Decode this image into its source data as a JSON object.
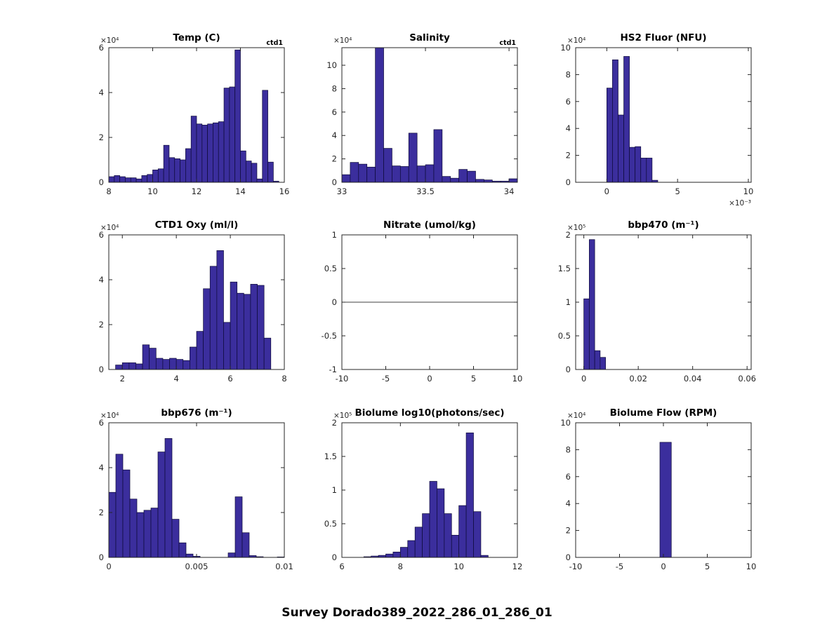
{
  "figure_title": "Survey Dorado389_2022_286_01_286_01",
  "style": {
    "bar_fill": "#3b2e9d",
    "bar_edge": "#0d0a38",
    "axis_color": "#262626"
  },
  "chart_data": [
    {
      "type": "bar",
      "title": "Temp (C)",
      "annotation": "ctd1",
      "y_exponent": "×10⁴",
      "xlim": [
        8,
        16
      ],
      "ylim": [
        0,
        6
      ],
      "xticks": [
        8,
        10,
        12,
        14,
        16
      ],
      "yticks": [
        0,
        2,
        4,
        6
      ],
      "bin_start": 8.0,
      "bin_width": 0.25,
      "values": [
        0.25,
        0.3,
        0.25,
        0.2,
        0.2,
        0.15,
        0.3,
        0.35,
        0.55,
        0.6,
        1.65,
        1.1,
        1.05,
        1.0,
        1.5,
        2.95,
        2.6,
        2.55,
        2.6,
        2.65,
        2.7,
        4.2,
        4.25,
        5.9,
        1.4,
        0.95,
        0.85,
        0.15,
        4.1,
        0.9,
        0.05
      ]
    },
    {
      "type": "bar",
      "title": "Salinity",
      "annotation": "ctd1",
      "y_exponent": "×10⁴",
      "xlim": [
        33,
        34.05
      ],
      "ylim": [
        0,
        11.5
      ],
      "xticks": [
        33,
        33.5,
        34
      ],
      "yticks": [
        0,
        2,
        4,
        6,
        8,
        10
      ],
      "bin_start": 33.0,
      "bin_width": 0.05,
      "values": [
        0.65,
        1.7,
        1.55,
        1.3,
        11.5,
        2.9,
        1.4,
        1.35,
        4.2,
        1.4,
        1.5,
        4.5,
        0.5,
        0.35,
        1.1,
        0.95,
        0.25,
        0.2,
        0.1,
        0.1,
        0.3
      ]
    },
    {
      "type": "bar",
      "title": "HS2 Fluor (NFU)",
      "y_exponent": "×10⁴",
      "x_exponent": "×10⁻³",
      "xlim": [
        -0.0022,
        0.0102
      ],
      "ylim": [
        0,
        10
      ],
      "xticks": [
        0,
        0.005,
        0.01
      ],
      "xtick_labels": [
        "0",
        "5",
        "10"
      ],
      "yticks": [
        0,
        2,
        4,
        6,
        8,
        10
      ],
      "bin_start": 0,
      "bin_width": 0.0004,
      "values": [
        7.0,
        9.1,
        5.0,
        9.35,
        2.6,
        2.65,
        1.8,
        1.8,
        0.15
      ]
    },
    {
      "type": "bar",
      "title": "CTD1 Oxy (ml/l)",
      "y_exponent": "×10⁴",
      "xlim": [
        1.5,
        8
      ],
      "ylim": [
        0,
        6
      ],
      "xticks": [
        2,
        4,
        6,
        8
      ],
      "yticks": [
        0,
        2,
        4,
        6
      ],
      "bin_start": 1.75,
      "bin_width": 0.25,
      "values": [
        0.2,
        0.3,
        0.3,
        0.25,
        1.1,
        0.95,
        0.5,
        0.45,
        0.5,
        0.45,
        0.4,
        1.0,
        1.7,
        3.6,
        4.6,
        5.3,
        2.1,
        3.9,
        3.4,
        3.35,
        3.8,
        3.75,
        1.4
      ]
    },
    {
      "type": "bar",
      "title": "Nitrate (umol/kg)",
      "xlim": [
        -10,
        10
      ],
      "ylim": [
        -1,
        1
      ],
      "xticks": [
        -10,
        -5,
        0,
        5,
        10
      ],
      "yticks": [
        -1,
        -0.5,
        0,
        0.5,
        1
      ],
      "bin_start": 0,
      "bin_width": 1,
      "values": [],
      "zero_line": true
    },
    {
      "type": "bar",
      "title": "bbp470 (m⁻¹)",
      "y_exponent": "×10⁵",
      "xlim": [
        -0.003,
        0.0615
      ],
      "ylim": [
        0,
        2
      ],
      "xticks": [
        0,
        0.02,
        0.04,
        0.06
      ],
      "yticks": [
        0,
        0.5,
        1,
        1.5,
        2
      ],
      "bin_start": 0,
      "bin_width": 0.002,
      "values": [
        1.05,
        1.93,
        0.28,
        0.18
      ]
    },
    {
      "type": "bar",
      "title": "bbp676 (m⁻¹)",
      "y_exponent": "×10⁴",
      "xlim": [
        0,
        0.01
      ],
      "ylim": [
        0,
        6
      ],
      "xticks": [
        0,
        0.005,
        0.01
      ],
      "yticks": [
        0,
        2,
        4,
        6
      ],
      "bin_start": 0,
      "bin_width": 0.0004,
      "values": [
        2.9,
        4.6,
        3.9,
        2.6,
        2.0,
        2.1,
        2.2,
        4.7,
        5.3,
        1.7,
        0.65,
        0.15,
        0.05,
        0,
        0,
        0,
        0,
        0.2,
        2.7,
        1.1,
        0.08,
        0.03,
        0,
        0,
        0.02
      ]
    },
    {
      "type": "bar",
      "title": "Biolume log10(photons/sec)",
      "y_exponent": "×10⁵",
      "xlim": [
        6,
        12
      ],
      "ylim": [
        0,
        2
      ],
      "xticks": [
        6,
        8,
        10,
        12
      ],
      "yticks": [
        0,
        0.5,
        1,
        1.5,
        2
      ],
      "bin_start": 6.75,
      "bin_width": 0.25,
      "values": [
        0.01,
        0.02,
        0.03,
        0.05,
        0.08,
        0.15,
        0.25,
        0.45,
        0.65,
        1.13,
        1.02,
        0.65,
        0.33,
        0.77,
        1.85,
        0.68,
        0.03
      ]
    },
    {
      "type": "bar",
      "title": "Biolume Flow (RPM)",
      "y_exponent": "×10⁴",
      "xlim": [
        -10,
        10
      ],
      "ylim": [
        0,
        10
      ],
      "xticks": [
        -10,
        -5,
        0,
        5,
        10
      ],
      "yticks": [
        0,
        2,
        4,
        6,
        8,
        10
      ],
      "bin_start": -0.4,
      "bin_width": 1.3,
      "values": [
        8.55
      ]
    }
  ]
}
